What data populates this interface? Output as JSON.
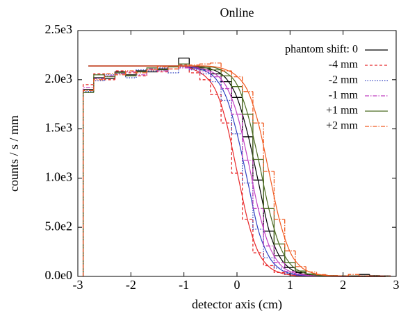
{
  "chart_data": {
    "type": "histogram",
    "title": "Online",
    "xlabel": "detector axis (cm)",
    "ylabel": "counts / s / mm",
    "bins": [
      -2.9,
      -2.7,
      -2.5,
      -2.3,
      -2.1,
      -1.9,
      -1.7,
      -1.5,
      -1.3,
      -1.1,
      -0.9,
      -0.7,
      -0.5,
      -0.3,
      -0.1,
      0.1,
      0.3,
      0.5,
      0.7,
      0.9,
      1.1,
      1.3,
      1.5,
      1.7,
      1.9,
      2.1,
      2.3,
      2.5,
      2.7,
      2.9
    ],
    "x": [
      -2.8,
      -2.6,
      -2.4,
      -2.2,
      -2.0,
      -1.8,
      -1.6,
      -1.4,
      -1.2,
      -1.0,
      -0.8,
      -0.6,
      -0.4,
      -0.2,
      0,
      0.2,
      0.4,
      0.6,
      0.8,
      1.0,
      1.2,
      1.4,
      1.6,
      1.8,
      2.0,
      2.2,
      2.4,
      2.6,
      2.8
    ],
    "xlim": [
      -3,
      3
    ],
    "xticks": [
      -3,
      -2,
      -1,
      0,
      1,
      2,
      3
    ],
    "ylim": [
      0,
      2500
    ],
    "yticks": [
      {
        "value": 0,
        "label": "0.0e0"
      },
      {
        "value": 500,
        "label": "5.0e2"
      },
      {
        "value": 1000,
        "label": "1.0e3"
      },
      {
        "value": 1500,
        "label": "1.5e3"
      },
      {
        "value": 2000,
        "label": "2.0e3"
      },
      {
        "value": 2500,
        "label": "2.5e3"
      }
    ],
    "legend": "upper right",
    "series": [
      {
        "name": "phantom shift:  0",
        "color": "#000000",
        "dash": "solid",
        "values": [
          1900,
          2020,
          2010,
          2080,
          2050,
          2090,
          2080,
          2110,
          2130,
          2220,
          2120,
          2100,
          2060,
          1980,
          1820,
          1420,
          980,
          460,
          210,
          90,
          40,
          15,
          10,
          8,
          6,
          5,
          20,
          8,
          5
        ],
        "fit": [
          2140,
          2140,
          2140,
          2140,
          2140,
          2140,
          2140,
          2140,
          2140,
          2140,
          2133,
          2122,
          2090,
          2010,
          1820,
          1455,
          970,
          475,
          205,
          80,
          30,
          11,
          4,
          2,
          1,
          0,
          0,
          0,
          0
        ]
      },
      {
        "name": "-4 mm",
        "color": "#e8282a",
        "dash": "dashed",
        "values": [
          1950,
          2060,
          2000,
          2090,
          2070,
          2040,
          2100,
          2080,
          2110,
          2150,
          2070,
          2000,
          1850,
          1560,
          1050,
          580,
          240,
          110,
          40,
          20,
          10,
          8,
          5,
          5,
          4,
          5,
          3,
          4,
          3
        ],
        "fit": [
          2140,
          2140,
          2140,
          2140,
          2140,
          2140,
          2140,
          2140,
          2140,
          2135,
          2100,
          2035,
          1890,
          1565,
          1070,
          575,
          250,
          100,
          40,
          15,
          6,
          2,
          1,
          0,
          0,
          0,
          0,
          0,
          0
        ]
      },
      {
        "name": "-2 mm",
        "color": "#3040c0",
        "dash": "dotted",
        "values": [
          1880,
          1990,
          2050,
          2060,
          2020,
          2100,
          2090,
          2120,
          2070,
          2130,
          2100,
          2060,
          1980,
          1790,
          1450,
          950,
          480,
          190,
          85,
          30,
          12,
          8,
          6,
          5,
          5,
          4,
          4,
          3,
          3
        ],
        "fit": [
          2140,
          2140,
          2140,
          2140,
          2140,
          2140,
          2140,
          2140,
          2140,
          2140,
          2120,
          2090,
          2010,
          1820,
          1455,
          970,
          475,
          205,
          80,
          30,
          11,
          4,
          2,
          1,
          0,
          0,
          0,
          0,
          0
        ]
      },
      {
        "name": "-1 mm",
        "color": "#c040c0",
        "dash": "dashdot",
        "values": [
          1920,
          2010,
          2040,
          2060,
          2080,
          2050,
          2110,
          2090,
          2140,
          2120,
          2110,
          2080,
          2030,
          1910,
          1650,
          1180,
          690,
          310,
          140,
          50,
          22,
          10,
          7,
          6,
          5,
          5,
          4,
          3,
          3
        ],
        "fit": [
          2140,
          2140,
          2140,
          2140,
          2140,
          2140,
          2140,
          2140,
          2140,
          2140,
          2128,
          2105,
          2055,
          1930,
          1655,
          1200,
          690,
          320,
          130,
          50,
          19,
          7,
          3,
          1,
          0,
          0,
          0,
          0,
          0
        ]
      },
      {
        "name": "+1 mm",
        "color": "#4a6a20",
        "dash": "solid",
        "values": [
          1870,
          2050,
          2030,
          2070,
          2040,
          2080,
          2120,
          2100,
          2130,
          2160,
          2140,
          2120,
          2100,
          2040,
          1930,
          1650,
          1190,
          690,
          330,
          140,
          55,
          25,
          12,
          8,
          6,
          5,
          4,
          4,
          3
        ],
        "fit": [
          2140,
          2140,
          2140,
          2140,
          2140,
          2140,
          2140,
          2140,
          2140,
          2140,
          2140,
          2135,
          2120,
          2070,
          1950,
          1655,
          1200,
          690,
          320,
          130,
          50,
          19,
          7,
          3,
          1,
          0,
          0,
          0,
          0
        ]
      },
      {
        "name": "+2 mm",
        "color": "#f05a20",
        "dash": "dashdot",
        "values": [
          1890,
          2000,
          2060,
          2050,
          2090,
          2070,
          2100,
          2130,
          2110,
          2140,
          2150,
          2160,
          2170,
          2090,
          2030,
          1880,
          1560,
          1070,
          580,
          260,
          100,
          45,
          18,
          8,
          6,
          20,
          5,
          4,
          3
        ],
        "fit": [
          2140,
          2140,
          2140,
          2140,
          2140,
          2140,
          2140,
          2140,
          2140,
          2140,
          2140,
          2140,
          2130,
          2100,
          2035,
          1890,
          1565,
          1070,
          575,
          250,
          100,
          40,
          15,
          6,
          2,
          1,
          0,
          0,
          0
        ]
      }
    ]
  }
}
